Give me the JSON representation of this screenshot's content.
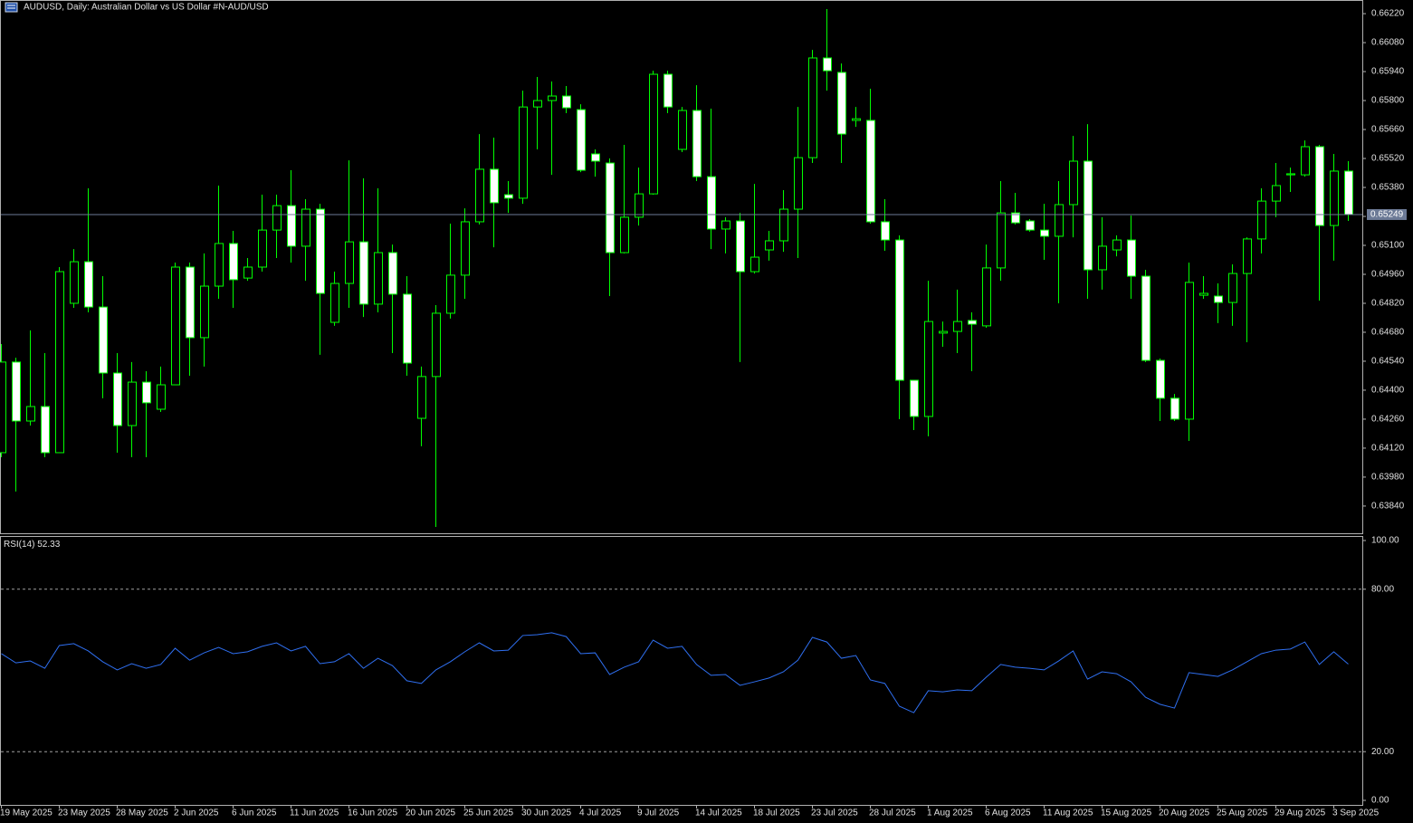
{
  "chart_data": [
    {
      "type": "candlestick",
      "title": "AUDUSD, Daily:  Australian Dollar vs US Dollar #N-AUD/USD",
      "categories": [
        "19 May 2025",
        null,
        null,
        null,
        "23 May 2025",
        null,
        null,
        null,
        "28 May 2025",
        null,
        null,
        null,
        "2 Jun 2025",
        null,
        null,
        null,
        "6 Jun 2025",
        null,
        null,
        null,
        "11 Jun 2025",
        null,
        null,
        null,
        "16 Jun 2025",
        null,
        null,
        null,
        "20 Jun 2025",
        null,
        null,
        null,
        "25 Jun 2025",
        null,
        null,
        null,
        "30 Jun 2025",
        null,
        null,
        null,
        "4 Jul 2025",
        null,
        null,
        null,
        "9 Jul 2025",
        null,
        null,
        null,
        "14 Jul 2025",
        null,
        null,
        null,
        "18 Jul 2025",
        null,
        null,
        null,
        "23 Jul 2025",
        null,
        null,
        null,
        "28 Jul 2025",
        null,
        null,
        null,
        "1 Aug 2025",
        null,
        null,
        null,
        "6 Aug 2025",
        null,
        null,
        null,
        "11 Aug 2025",
        null,
        null,
        null,
        "15 Aug 2025",
        null,
        null,
        null,
        "20 Aug 2025",
        null,
        null,
        null,
        "25 Aug 2025",
        null,
        null,
        null,
        "29 Aug 2025",
        null,
        null,
        null,
        "3 Sep 2025",
        null
      ],
      "open": [
        0.64098,
        0.64536,
        0.64251,
        0.64321,
        0.64098,
        0.6482,
        0.65021,
        0.64802,
        0.64483,
        0.64229,
        0.64439,
        0.64308,
        0.64426,
        0.64995,
        0.64654,
        0.64903,
        0.65109,
        0.64942,
        0.64995,
        0.65174,
        0.65292,
        0.65096,
        0.65275,
        0.64728,
        0.64916,
        0.65117,
        0.64816,
        0.65065,
        0.64864,
        0.64264,
        0.64466,
        0.64772,
        0.64956,
        0.65214,
        0.65468,
        0.65345,
        0.65328,
        0.65769,
        0.658,
        0.65822,
        0.65756,
        0.65542,
        0.65498,
        0.65065,
        0.65236,
        0.65349,
        0.65927,
        0.65564,
        0.65752,
        0.65432,
        0.65179,
        0.65218,
        0.64973,
        0.65078,
        0.65122,
        0.65275,
        0.65524,
        0.66006,
        0.65936,
        0.65704,
        0.65704,
        0.65214,
        0.65126,
        0.64448,
        0.64273,
        0.64676,
        0.64684,
        0.64737,
        0.64711,
        0.64991,
        0.65257,
        0.65218,
        0.65174,
        0.65144,
        0.65297,
        0.65507,
        0.64982,
        0.65078,
        0.65126,
        0.64951,
        0.64544,
        0.64361,
        0.6426,
        0.64859,
        0.64855,
        0.64824,
        0.64964,
        0.65131,
        0.65314,
        0.65441,
        0.65441,
        0.65577,
        0.65196,
        0.65459
      ],
      "high": [
        0.64623,
        0.64557,
        0.64689,
        0.64579,
        0.64995,
        0.65082,
        0.65376,
        0.64951,
        0.64579,
        0.64536,
        0.64492,
        0.64514,
        0.65017,
        0.65017,
        0.65061,
        0.65389,
        0.6517,
        0.65039,
        0.65345,
        0.65345,
        0.65463,
        0.65323,
        0.65301,
        0.64973,
        0.65511,
        0.65424,
        0.65376,
        0.65104,
        0.64951,
        0.64514,
        0.64811,
        0.65205,
        0.65279,
        0.65638,
        0.65621,
        0.65411,
        0.65848,
        0.65914,
        0.65892,
        0.6587,
        0.65782,
        0.65564,
        0.6552,
        0.65586,
        0.65476,
        0.65944,
        0.65944,
        0.65769,
        0.65874,
        0.65761,
        0.65236,
        0.65257,
        0.65397,
        0.6517,
        0.65367,
        0.65769,
        0.66045,
        0.66242,
        0.65979,
        0.65769,
        0.65857,
        0.65323,
        0.65148,
        0.64448,
        0.64929,
        0.64732,
        0.64886,
        0.64776,
        0.65104,
        0.65411,
        0.65354,
        0.65227,
        0.65301,
        0.65411,
        0.65629,
        0.65686,
        0.65236,
        0.65148,
        0.65244,
        0.64982,
        0.64553,
        0.64382,
        0.65017,
        0.64951,
        0.64916,
        0.65008,
        0.65139,
        0.65376,
        0.65498,
        0.65476,
        0.65607,
        0.65586,
        0.65542,
        0.65507
      ],
      "low": [
        0.64076,
        0.6391,
        0.64229,
        0.64076,
        0.64098,
        0.64798,
        0.64776,
        0.64361,
        0.64098,
        0.64076,
        0.64076,
        0.64295,
        0.64426,
        0.6447,
        0.64514,
        0.64842,
        0.64798,
        0.64929,
        0.64973,
        0.65039,
        0.65017,
        0.64929,
        0.64571,
        0.64711,
        0.64798,
        0.64754,
        0.64776,
        0.64579,
        0.6447,
        0.64129,
        0.63739,
        0.64746,
        0.64842,
        0.65201,
        0.65091,
        0.65257,
        0.65301,
        0.65564,
        0.65441,
        0.65739,
        0.65454,
        0.65432,
        0.64855,
        0.65061,
        0.65196,
        0.65345,
        0.65739,
        0.65551,
        0.65411,
        0.65082,
        0.65061,
        0.64536,
        0.64964,
        0.65026,
        0.65069,
        0.65039,
        0.65498,
        0.65848,
        0.65498,
        0.65673,
        0.65205,
        0.65074,
        0.6426,
        0.64207,
        0.64177,
        0.6461,
        0.64579,
        0.64492,
        0.64702,
        0.64929,
        0.65201,
        0.65166,
        0.6503,
        0.6482,
        0.65139,
        0.64842,
        0.64886,
        0.65047,
        0.64842,
        0.64536,
        0.64251,
        0.64251,
        0.64155,
        0.64842,
        0.64724,
        0.64711,
        0.64632,
        0.65061,
        0.65236,
        0.65358,
        0.65432,
        0.64833,
        0.65026,
        0.65218
      ],
      "close": [
        0.64536,
        0.64251,
        0.64321,
        0.64098,
        0.64973,
        0.65021,
        0.64802,
        0.64483,
        0.64229,
        0.64439,
        0.64339,
        0.64426,
        0.64995,
        0.64654,
        0.64903,
        0.65109,
        0.64934,
        0.64995,
        0.65174,
        0.65292,
        0.65096,
        0.65275,
        0.64868,
        0.64916,
        0.65117,
        0.64816,
        0.65065,
        0.64864,
        0.64531,
        0.64466,
        0.64772,
        0.64956,
        0.65214,
        0.65468,
        0.65306,
        0.65328,
        0.65769,
        0.658,
        0.65822,
        0.65765,
        0.65463,
        0.65507,
        0.65065,
        0.65236,
        0.65349,
        0.65927,
        0.65769,
        0.65752,
        0.65432,
        0.65179,
        0.65218,
        0.64973,
        0.65043,
        0.65122,
        0.65275,
        0.65524,
        0.66006,
        0.65944,
        0.65638,
        0.65712,
        0.65214,
        0.65126,
        0.64448,
        0.64273,
        0.64732,
        0.64684,
        0.64732,
        0.64719,
        0.64991,
        0.65257,
        0.65209,
        0.65174,
        0.65144,
        0.65297,
        0.65507,
        0.64982,
        0.65096,
        0.65126,
        0.64951,
        0.64544,
        0.64361,
        0.6426,
        0.64921,
        0.64868,
        0.64824,
        0.64964,
        0.65131,
        0.65314,
        0.65389,
        0.65446,
        0.65577,
        0.65196,
        0.65459,
        0.65249
      ],
      "color": "#00ff00",
      "up_fill": "#000000",
      "down_fill": "#ffffff",
      "last_price_color": "#6c7a96",
      "ylim": [
        0.63704,
        0.66286
      ],
      "yticks": [
        {
          "value": 0.6622,
          "label": "0.66220"
        },
        {
          "value": 0.6608,
          "label": "0.66080"
        },
        {
          "value": 0.6594,
          "label": "0.65940"
        },
        {
          "value": 0.658,
          "label": "0.65800"
        },
        {
          "value": 0.6566,
          "label": "0.65660"
        },
        {
          "value": 0.6552,
          "label": "0.65520"
        },
        {
          "value": 0.6538,
          "label": "0.65380"
        },
        {
          "value": 0.6524,
          "label": "0.65240"
        },
        {
          "value": 0.651,
          "label": "0.65100"
        },
        {
          "value": 0.6496,
          "label": "0.64960"
        },
        {
          "value": 0.6482,
          "label": "0.64820"
        },
        {
          "value": 0.6468,
          "label": "0.64680"
        },
        {
          "value": 0.6454,
          "label": "0.64540"
        },
        {
          "value": 0.644,
          "label": "0.64400"
        },
        {
          "value": 0.6426,
          "label": "0.64260"
        },
        {
          "value": 0.6412,
          "label": "0.64120"
        },
        {
          "value": 0.6398,
          "label": "0.63980"
        },
        {
          "value": 0.6384,
          "label": "0.63840"
        }
      ]
    },
    {
      "type": "line",
      "title": "RSI(14)",
      "series": [
        {
          "name": "RSI(14)",
          "color": "#2f6ff0",
          "values": [
            56.2,
            52.8,
            53.5,
            50.8,
            59.2,
            59.9,
            57.2,
            53.2,
            50.2,
            52.5,
            50.8,
            52.2,
            58.2,
            53.8,
            56.5,
            58.5,
            56.2,
            56.9,
            58.9,
            60.2,
            57.2,
            58.9,
            52.5,
            53.2,
            56.2,
            50.8,
            54.5,
            51.8,
            46.2,
            45.2,
            50.2,
            53.2,
            56.9,
            60.2,
            57.2,
            57.5,
            62.9,
            63.2,
            63.9,
            62.5,
            56.2,
            56.5,
            48.5,
            51.2,
            53.2,
            61.2,
            58.2,
            58.9,
            52.2,
            48.2,
            48.5,
            44.5,
            45.8,
            47.2,
            49.5,
            53.8,
            62.2,
            60.5,
            54.5,
            55.5,
            46.5,
            45.2,
            36.8,
            34.4,
            42.5,
            42.1,
            42.8,
            42.5,
            47.5,
            52.2,
            51.2,
            50.8,
            50.2,
            53.5,
            57.2,
            46.8,
            49.5,
            48.8,
            45.8,
            40.1,
            37.5,
            36.1,
            49.2,
            48.5,
            47.8,
            50.2,
            53.2,
            56.2,
            57.5,
            57.9,
            60.5,
            52.2,
            56.9,
            52.33
          ]
        }
      ],
      "ylim": [
        0,
        100
      ],
      "yticks": [
        {
          "value": 100,
          "label": "100.00"
        },
        {
          "value": 80,
          "label": "80.00"
        },
        {
          "value": 20,
          "label": "20.00"
        },
        {
          "value": 0,
          "label": "0.00"
        }
      ]
    }
  ]
}
